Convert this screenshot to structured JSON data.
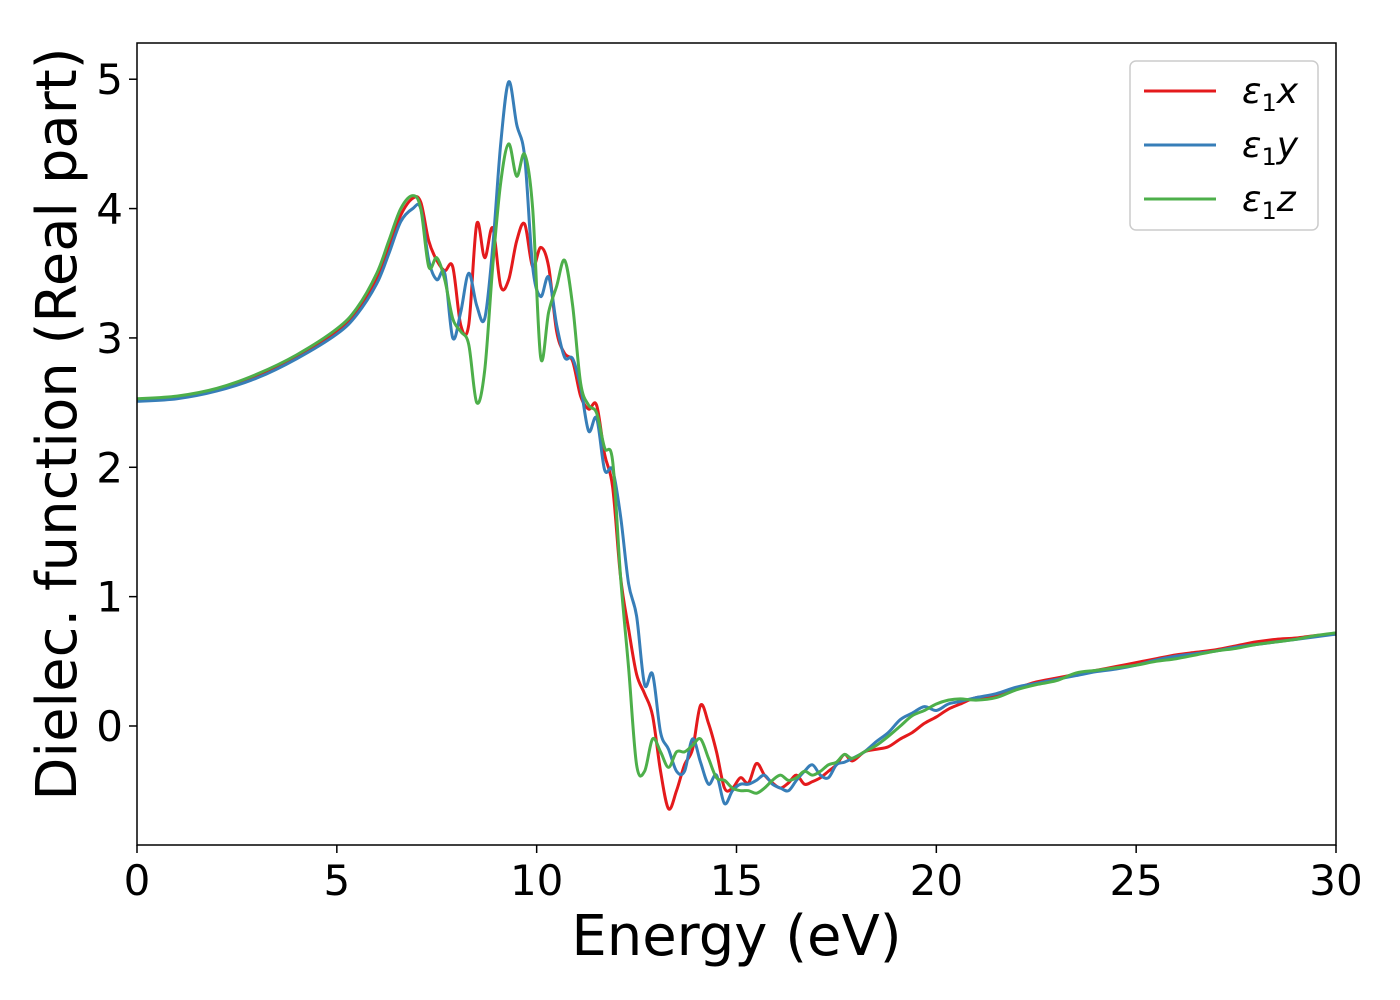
{
  "colors": {
    "series_x": "#e41a1c",
    "series_y": "#377eb8",
    "series_z": "#4daf4a",
    "axis": "#000000",
    "legend_border": "#cccccc"
  },
  "chart_data": {
    "type": "line",
    "title": "",
    "xlabel": "Energy (eV)",
    "ylabel": "Dielec. function (Real part)",
    "xlim": [
      0,
      30
    ],
    "ylim": [
      -0.92,
      5.28
    ],
    "xticks": [
      0,
      5,
      10,
      15,
      20,
      25,
      30
    ],
    "xtick_labels": [
      "0",
      "5",
      "10",
      "15",
      "20",
      "25",
      "30"
    ],
    "yticks": [
      0,
      1,
      2,
      3,
      4,
      5
    ],
    "ytick_labels": [
      "0",
      "1",
      "2",
      "3",
      "4",
      "5"
    ],
    "grid": false,
    "legend_position": "top-right",
    "series": [
      {
        "name": "ε1x",
        "legend_base": "ε",
        "legend_sub": "1",
        "legend_var": "x",
        "color": "#e41a1c",
        "x": [
          0,
          1,
          2,
          3,
          4,
          5,
          5.5,
          6,
          6.3,
          6.6,
          6.9,
          7.1,
          7.3,
          7.5,
          7.7,
          7.9,
          8.1,
          8.3,
          8.5,
          8.7,
          8.9,
          9.1,
          9.3,
          9.5,
          9.7,
          9.9,
          10.1,
          10.3,
          10.5,
          10.7,
          10.9,
          11.1,
          11.3,
          11.5,
          11.7,
          11.9,
          12.1,
          12.3,
          12.5,
          12.7,
          12.9,
          13.1,
          13.3,
          13.5,
          13.7,
          13.9,
          14.1,
          14.3,
          14.5,
          14.7,
          14.9,
          15.1,
          15.3,
          15.5,
          15.7,
          15.9,
          16.1,
          16.3,
          16.5,
          16.7,
          16.9,
          17.1,
          17.3,
          17.5,
          17.7,
          17.9,
          18.2,
          18.5,
          18.8,
          19.1,
          19.4,
          19.7,
          20.0,
          20.3,
          20.6,
          21.0,
          21.5,
          22.0,
          22.5,
          23.0,
          23.5,
          24.0,
          24.5,
          25.0,
          25.5,
          26.0,
          26.5,
          27.0,
          27.5,
          28.0,
          28.5,
          29.0,
          29.5,
          30.0
        ],
        "values": [
          2.52,
          2.54,
          2.6,
          2.7,
          2.85,
          3.05,
          3.2,
          3.45,
          3.7,
          3.95,
          4.08,
          4.05,
          3.75,
          3.6,
          3.52,
          3.55,
          3.1,
          3.1,
          3.88,
          3.62,
          3.85,
          3.4,
          3.45,
          3.75,
          3.88,
          3.55,
          3.7,
          3.55,
          3.05,
          2.88,
          2.82,
          2.55,
          2.45,
          2.48,
          2.1,
          1.85,
          1.15,
          0.75,
          0.4,
          0.25,
          0.08,
          -0.35,
          -0.64,
          -0.5,
          -0.3,
          -0.18,
          0.16,
          0.02,
          -0.2,
          -0.48,
          -0.48,
          -0.4,
          -0.44,
          -0.29,
          -0.38,
          -0.44,
          -0.48,
          -0.44,
          -0.38,
          -0.45,
          -0.43,
          -0.4,
          -0.35,
          -0.3,
          -0.22,
          -0.27,
          -0.2,
          -0.18,
          -0.16,
          -0.1,
          -0.05,
          0.02,
          0.07,
          0.13,
          0.17,
          0.22,
          0.23,
          0.29,
          0.34,
          0.37,
          0.4,
          0.43,
          0.46,
          0.49,
          0.52,
          0.55,
          0.57,
          0.59,
          0.62,
          0.65,
          0.67,
          0.68,
          0.7,
          0.71
        ]
      },
      {
        "name": "ε1y",
        "legend_base": "ε",
        "legend_sub": "1",
        "legend_var": "y",
        "color": "#377eb8",
        "x": [
          0,
          1,
          2,
          3,
          4,
          5,
          5.5,
          6,
          6.3,
          6.6,
          6.9,
          7.1,
          7.3,
          7.5,
          7.7,
          7.9,
          8.1,
          8.3,
          8.5,
          8.7,
          8.9,
          9.1,
          9.3,
          9.5,
          9.7,
          9.9,
          10.1,
          10.3,
          10.5,
          10.7,
          10.9,
          11.1,
          11.3,
          11.5,
          11.7,
          11.9,
          12.1,
          12.3,
          12.5,
          12.7,
          12.9,
          13.1,
          13.3,
          13.5,
          13.7,
          13.9,
          14.1,
          14.3,
          14.5,
          14.7,
          14.9,
          15.1,
          15.3,
          15.5,
          15.7,
          15.9,
          16.1,
          16.3,
          16.5,
          16.7,
          16.9,
          17.1,
          17.3,
          17.5,
          17.7,
          17.9,
          18.2,
          18.5,
          18.8,
          19.1,
          19.4,
          19.7,
          20.0,
          20.3,
          20.6,
          21.0,
          21.5,
          22.0,
          22.5,
          23.0,
          23.5,
          24.0,
          24.5,
          25.0,
          25.5,
          26.0,
          26.5,
          27.0,
          27.5,
          28.0,
          28.5,
          29.0,
          29.5,
          30.0
        ],
        "values": [
          2.51,
          2.53,
          2.59,
          2.69,
          2.84,
          3.03,
          3.18,
          3.42,
          3.65,
          3.9,
          4.0,
          4.0,
          3.6,
          3.45,
          3.5,
          3.0,
          3.2,
          3.5,
          3.25,
          3.15,
          3.7,
          4.5,
          4.98,
          4.65,
          4.4,
          3.55,
          3.32,
          3.47,
          3.1,
          2.85,
          2.84,
          2.62,
          2.28,
          2.38,
          1.98,
          1.98,
          1.62,
          1.1,
          0.85,
          0.32,
          0.4,
          -0.05,
          -0.18,
          -0.35,
          -0.35,
          -0.1,
          -0.28,
          -0.45,
          -0.38,
          -0.6,
          -0.5,
          -0.45,
          -0.45,
          -0.42,
          -0.38,
          -0.45,
          -0.48,
          -0.5,
          -0.42,
          -0.35,
          -0.3,
          -0.38,
          -0.4,
          -0.3,
          -0.28,
          -0.25,
          -0.2,
          -0.12,
          -0.05,
          0.05,
          0.1,
          0.15,
          0.12,
          0.17,
          0.19,
          0.22,
          0.25,
          0.3,
          0.33,
          0.36,
          0.39,
          0.42,
          0.44,
          0.47,
          0.51,
          0.54,
          0.56,
          0.58,
          0.61,
          0.63,
          0.65,
          0.67,
          0.69,
          0.71
        ]
      },
      {
        "name": "ε1z",
        "legend_base": "ε",
        "legend_sub": "1",
        "legend_var": "z",
        "color": "#4daf4a",
        "x": [
          0,
          1,
          2,
          3,
          4,
          5,
          5.5,
          6,
          6.3,
          6.6,
          6.9,
          7.1,
          7.3,
          7.5,
          7.7,
          7.9,
          8.1,
          8.3,
          8.5,
          8.7,
          8.9,
          9.1,
          9.3,
          9.5,
          9.7,
          9.9,
          10.1,
          10.3,
          10.5,
          10.7,
          10.9,
          11.1,
          11.3,
          11.5,
          11.7,
          11.9,
          12.1,
          12.3,
          12.5,
          12.7,
          12.9,
          13.1,
          13.3,
          13.5,
          13.7,
          13.9,
          14.1,
          14.3,
          14.5,
          14.7,
          14.9,
          15.1,
          15.3,
          15.5,
          15.7,
          15.9,
          16.1,
          16.3,
          16.5,
          16.7,
          16.9,
          17.1,
          17.3,
          17.5,
          17.7,
          17.9,
          18.2,
          18.5,
          18.8,
          19.1,
          19.4,
          19.7,
          20.0,
          20.3,
          20.6,
          21.0,
          21.5,
          22.0,
          22.5,
          23.0,
          23.5,
          24.0,
          24.5,
          25.0,
          25.5,
          26.0,
          26.5,
          27.0,
          27.5,
          28.0,
          28.5,
          29.0,
          29.5,
          30.0
        ],
        "values": [
          2.53,
          2.55,
          2.61,
          2.72,
          2.87,
          3.07,
          3.23,
          3.5,
          3.75,
          4.0,
          4.1,
          4.0,
          3.55,
          3.62,
          3.45,
          3.15,
          3.05,
          2.95,
          2.5,
          2.75,
          3.55,
          4.2,
          4.5,
          4.25,
          4.42,
          4.0,
          2.85,
          3.2,
          3.4,
          3.6,
          3.25,
          2.65,
          2.48,
          2.42,
          2.15,
          2.05,
          1.15,
          0.45,
          -0.3,
          -0.35,
          -0.1,
          -0.2,
          -0.32,
          -0.2,
          -0.2,
          -0.15,
          -0.1,
          -0.25,
          -0.4,
          -0.42,
          -0.48,
          -0.5,
          -0.5,
          -0.52,
          -0.48,
          -0.42,
          -0.38,
          -0.42,
          -0.4,
          -0.35,
          -0.38,
          -0.35,
          -0.3,
          -0.28,
          -0.22,
          -0.25,
          -0.2,
          -0.15,
          -0.08,
          0.0,
          0.08,
          0.12,
          0.17,
          0.2,
          0.21,
          0.2,
          0.22,
          0.28,
          0.32,
          0.35,
          0.41,
          0.43,
          0.45,
          0.47,
          0.5,
          0.52,
          0.55,
          0.58,
          0.6,
          0.63,
          0.65,
          0.67,
          0.7,
          0.72
        ]
      }
    ]
  }
}
